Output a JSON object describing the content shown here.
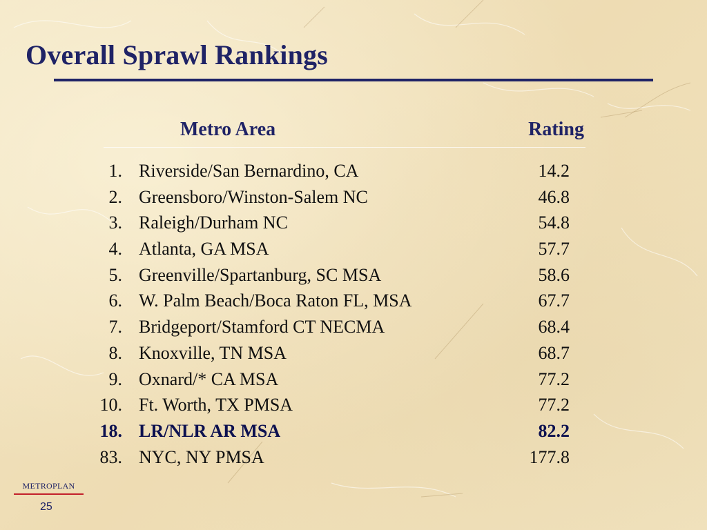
{
  "slide": {
    "title": "Overall Sprawl Rankings",
    "number": "25",
    "logo_text": "METROPLAN"
  },
  "table": {
    "headers": {
      "metro_area": "Metro Area",
      "rating": "Rating"
    },
    "rows": [
      {
        "rank": "1.",
        "area": "Riverside/San Bernardino, CA",
        "rating": "14.2"
      },
      {
        "rank": "2.",
        "area": "Greensboro/Winston-Salem NC",
        "rating": "46.8"
      },
      {
        "rank": "3.",
        "area": "Raleigh/Durham NC",
        "rating": "54.8"
      },
      {
        "rank": "4.",
        "area": "Atlanta, GA MSA",
        "rating": "57.7"
      },
      {
        "rank": "5.",
        "area": "Greenville/Spartanburg, SC MSA",
        "rating": "58.6"
      },
      {
        "rank": "6.",
        "area": "W. Palm Beach/Boca Raton FL, MSA",
        "rating": "67.7"
      },
      {
        "rank": "7.",
        "area": "Bridgeport/Stamford CT NECMA",
        "rating": "68.4"
      },
      {
        "rank": "8.",
        "area": "Knoxville, TN MSA",
        "rating": "68.7"
      },
      {
        "rank": "9.",
        "area": "Oxnard/* CA MSA",
        "rating": "77.2"
      },
      {
        "rank": "10.",
        "area": "Ft. Worth, TX PMSA",
        "rating": "77.2"
      },
      {
        "rank": "18.",
        "area": "LR/NLR AR MSA",
        "rating": "82.2",
        "highlight": true
      },
      {
        "rank": "83.",
        "area": "NYC, NY PMSA",
        "rating": "177.8"
      }
    ]
  },
  "colors": {
    "title": "#1f2366",
    "background": "#f1e3bf",
    "logo_rule": "#c21f2a"
  }
}
